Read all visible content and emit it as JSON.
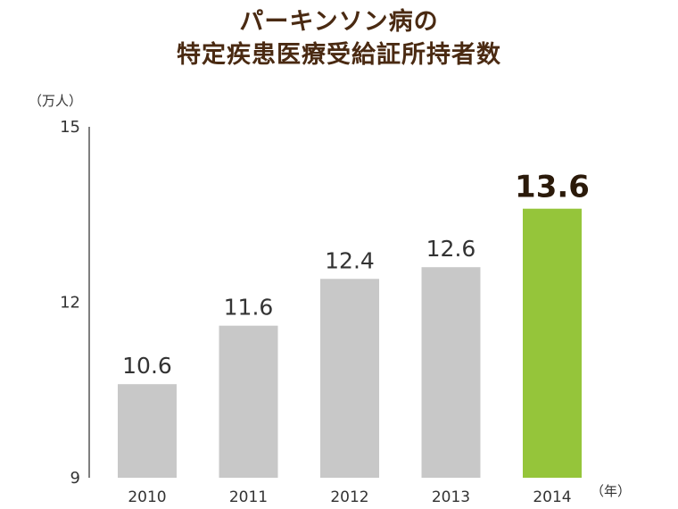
{
  "colors": {
    "title": "#4a2a12",
    "bar": "#c8c8c8",
    "highlight_bar": "#95c53a",
    "axis": "#555555",
    "label": "#333333",
    "highlight_label": "#2b1a0a"
  },
  "chart_data": {
    "type": "bar",
    "title": "パーキンソン病の",
    "subtitle": "特定疾患医療受給証所持者数",
    "ylabel": "（万人）",
    "xlabel": "（年）",
    "categories": [
      "2010",
      "2011",
      "2012",
      "2013",
      "2014"
    ],
    "values": [
      10.6,
      11.6,
      12.4,
      12.6,
      13.6
    ],
    "value_labels": [
      "10.6",
      "11.6",
      "12.4",
      "12.6",
      "13.6"
    ],
    "highlight_index": 4,
    "ylim": [
      9,
      15
    ],
    "yticks": [
      9,
      12,
      15
    ],
    "ytick_labels": [
      "9",
      "12",
      "15"
    ],
    "grid": false,
    "legend": "none"
  }
}
